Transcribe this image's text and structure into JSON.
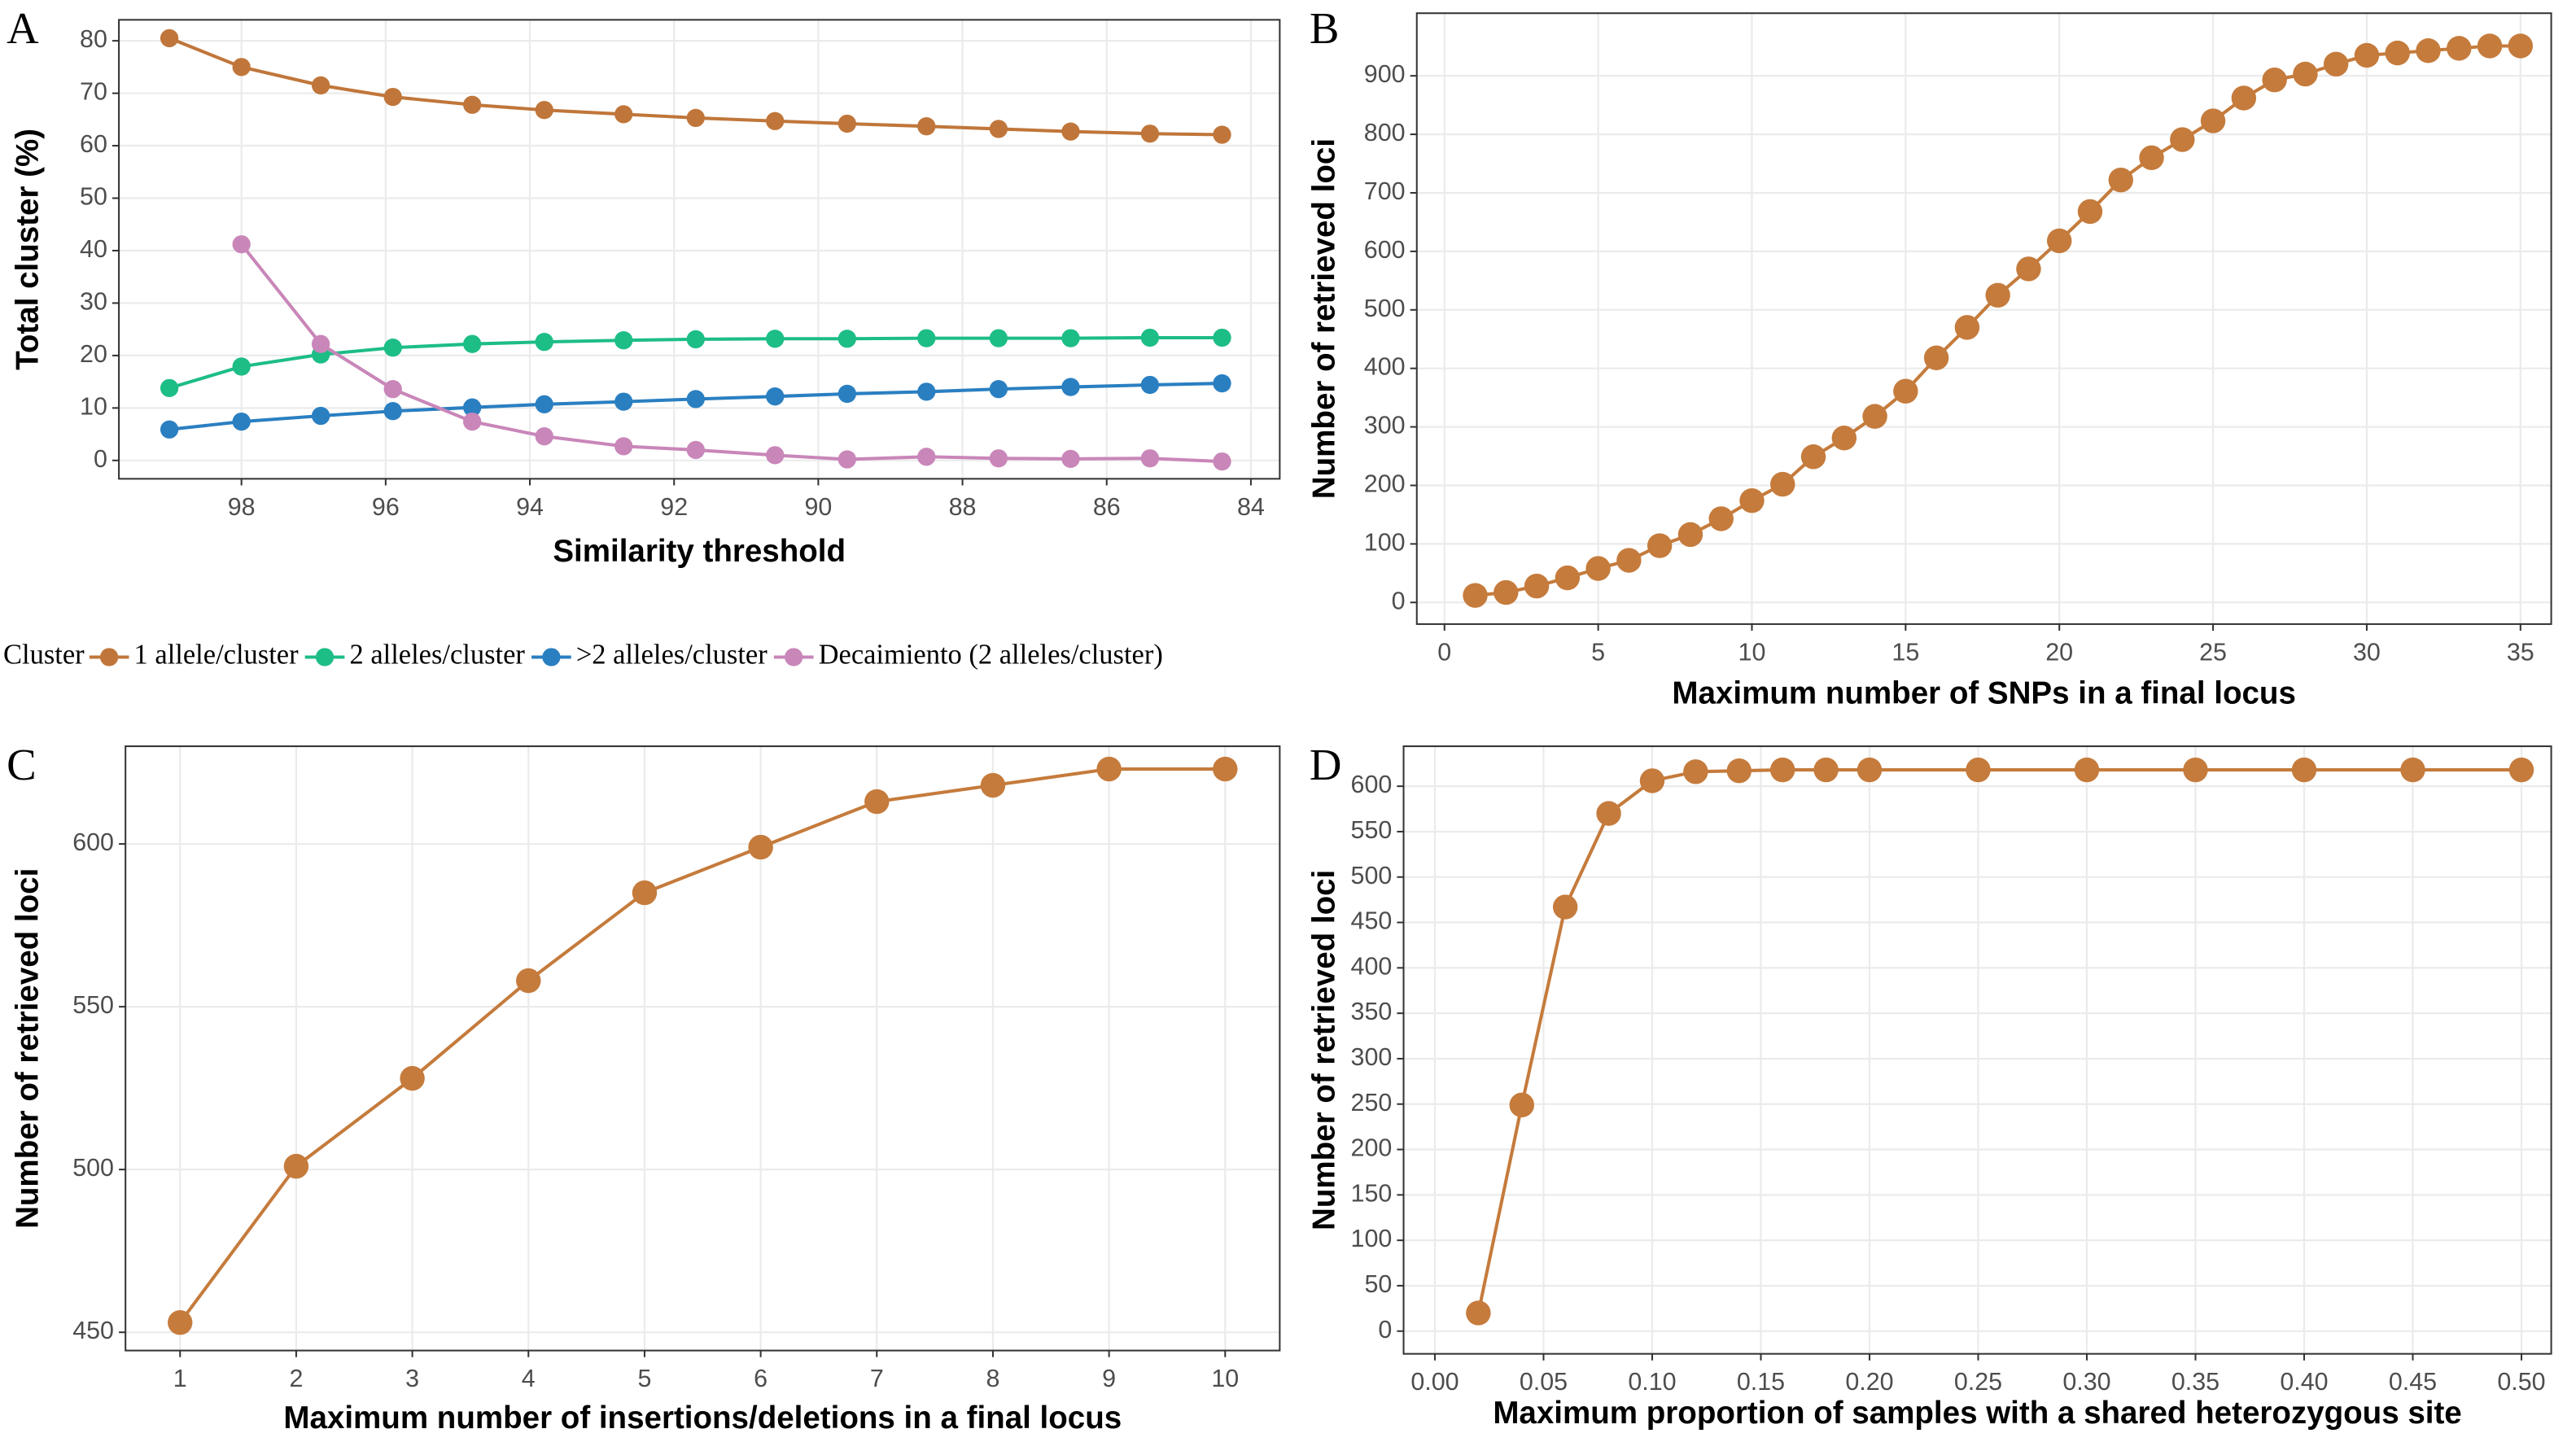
{
  "chart_data": [
    {
      "type": "line",
      "label": "A",
      "xlabel": "Similarity threshold",
      "ylabel": "Total cluster (%)",
      "x": [
        99,
        98,
        96.9,
        95.9,
        94.8,
        93.8,
        92.7,
        91.7,
        90.6,
        89.6,
        88.5,
        87.5,
        86.5,
        85.4,
        84.4
      ],
      "series": [
        {
          "name": "1 allele/cluster",
          "color": "#c0763a",
          "values": [
            80.5,
            75,
            71.5,
            69.3,
            67.8,
            66.8,
            66,
            65.3,
            64.7,
            64.2,
            63.7,
            63.2,
            62.7,
            62.3,
            62.1
          ]
        },
        {
          "name": "2 alleles/cluster",
          "color": "#1dbd86",
          "values": [
            13.8,
            17.9,
            20.2,
            21.5,
            22.2,
            22.6,
            22.9,
            23.1,
            23.2,
            23.2,
            23.3,
            23.3,
            23.3,
            23.4,
            23.4
          ]
        },
        {
          "name": ">2 alleles/cluster",
          "color": "#2a7fc1",
          "values": [
            5.9,
            7.4,
            8.5,
            9.4,
            10.1,
            10.7,
            11.2,
            11.7,
            12.2,
            12.7,
            13.1,
            13.6,
            14,
            14.4,
            14.7
          ]
        },
        {
          "name": "Decaimiento (2 alleles/cluster)",
          "color": "#c986b9",
          "values": [
            null,
            41.2,
            22.2,
            13.6,
            7.4,
            4.6,
            2.7,
            2.0,
            1.0,
            0.2,
            0.7,
            0.4,
            0.3,
            0.4,
            -0.2
          ]
        }
      ],
      "legend_title": "Cluster",
      "legend": "bottom",
      "xlim": [
        99.7,
        83.6
      ],
      "ylim": [
        -3.5,
        84
      ],
      "xticks": [
        98,
        96,
        94,
        92,
        90,
        88,
        86,
        84
      ],
      "yticks": [
        0,
        10,
        20,
        30,
        40,
        50,
        60,
        70,
        80
      ],
      "grid": true
    },
    {
      "type": "line",
      "label": "B",
      "xlabel": "Maximum number of SNPs in a final locus",
      "ylabel": "Number of retrieved loci",
      "x": [
        1,
        2,
        3,
        4,
        5,
        6,
        7,
        8,
        9,
        10,
        11,
        12,
        13,
        14,
        15,
        16,
        17,
        18,
        19,
        20,
        21,
        22,
        23,
        24,
        25,
        26,
        27,
        28,
        29,
        30,
        31,
        32,
        33,
        34,
        35
      ],
      "color": "#c57b3c",
      "values": [
        12,
        17,
        28,
        42,
        58,
        72,
        97,
        116,
        143,
        174,
        202,
        249,
        281,
        318,
        361,
        418,
        470,
        525,
        570,
        618,
        668,
        722,
        760,
        791,
        823,
        862,
        893,
        903,
        920,
        935,
        939,
        943,
        947,
        951,
        951
      ],
      "xlim": [
        -0.9,
        36
      ],
      "ylim": [
        -37,
        1007
      ],
      "xticks": [
        0,
        5,
        10,
        15,
        20,
        25,
        30,
        35
      ],
      "yticks": [
        0,
        100,
        200,
        300,
        400,
        500,
        600,
        700,
        800,
        900
      ],
      "grid": true
    },
    {
      "type": "line",
      "label": "C",
      "xlabel": "Maximum number of insertions/deletions in a final locus",
      "ylabel": "Number of retrieved loci",
      "x": [
        1,
        2,
        3,
        4,
        5,
        6,
        7,
        8,
        9,
        10
      ],
      "color": "#c57b3c",
      "values": [
        453,
        501,
        528,
        558,
        585,
        599,
        613,
        618,
        623,
        623
      ],
      "xlim": [
        0.53,
        10.47
      ],
      "ylim": [
        444.4,
        630
      ],
      "xticks": [
        1,
        2,
        3,
        4,
        5,
        6,
        7,
        8,
        9,
        10
      ],
      "yticks": [
        450,
        500,
        550,
        600
      ],
      "grid": true
    },
    {
      "type": "line",
      "label": "D",
      "xlabel": "Maximum proportion of samples with a shared heterozygous site",
      "ylabel": "Number of retrieved loci",
      "x": [
        0.02,
        0.04,
        0.06,
        0.08,
        0.1,
        0.12,
        0.14,
        0.16,
        0.18,
        0.2,
        0.25,
        0.3,
        0.35,
        0.4,
        0.45,
        0.5
      ],
      "color": "#c57b3c",
      "values": [
        20,
        249,
        467,
        570,
        606,
        616,
        617,
        618,
        618,
        618,
        618,
        618,
        618,
        618,
        618,
        618
      ],
      "xlim": [
        -0.0144,
        0.5137
      ],
      "ylim": [
        -25,
        644
      ],
      "xticks": [
        {
          "value": 0,
          "label": "0.00"
        },
        {
          "value": 0.05,
          "label": "0.05"
        },
        {
          "value": 0.1,
          "label": "0.10"
        },
        {
          "value": 0.15,
          "label": "0.15"
        },
        {
          "value": 0.2,
          "label": "0.20"
        },
        {
          "value": 0.25,
          "label": "0.25"
        },
        {
          "value": 0.3,
          "label": "0.30"
        },
        {
          "value": 0.35,
          "label": "0.35"
        },
        {
          "value": 0.4,
          "label": "0.40"
        },
        {
          "value": 0.45,
          "label": "0.45"
        },
        {
          "value": 0.5,
          "label": "0.50"
        }
      ],
      "yticks": [
        0,
        50,
        100,
        150,
        200,
        250,
        300,
        350,
        400,
        450,
        500,
        550,
        600
      ],
      "grid": true
    }
  ]
}
